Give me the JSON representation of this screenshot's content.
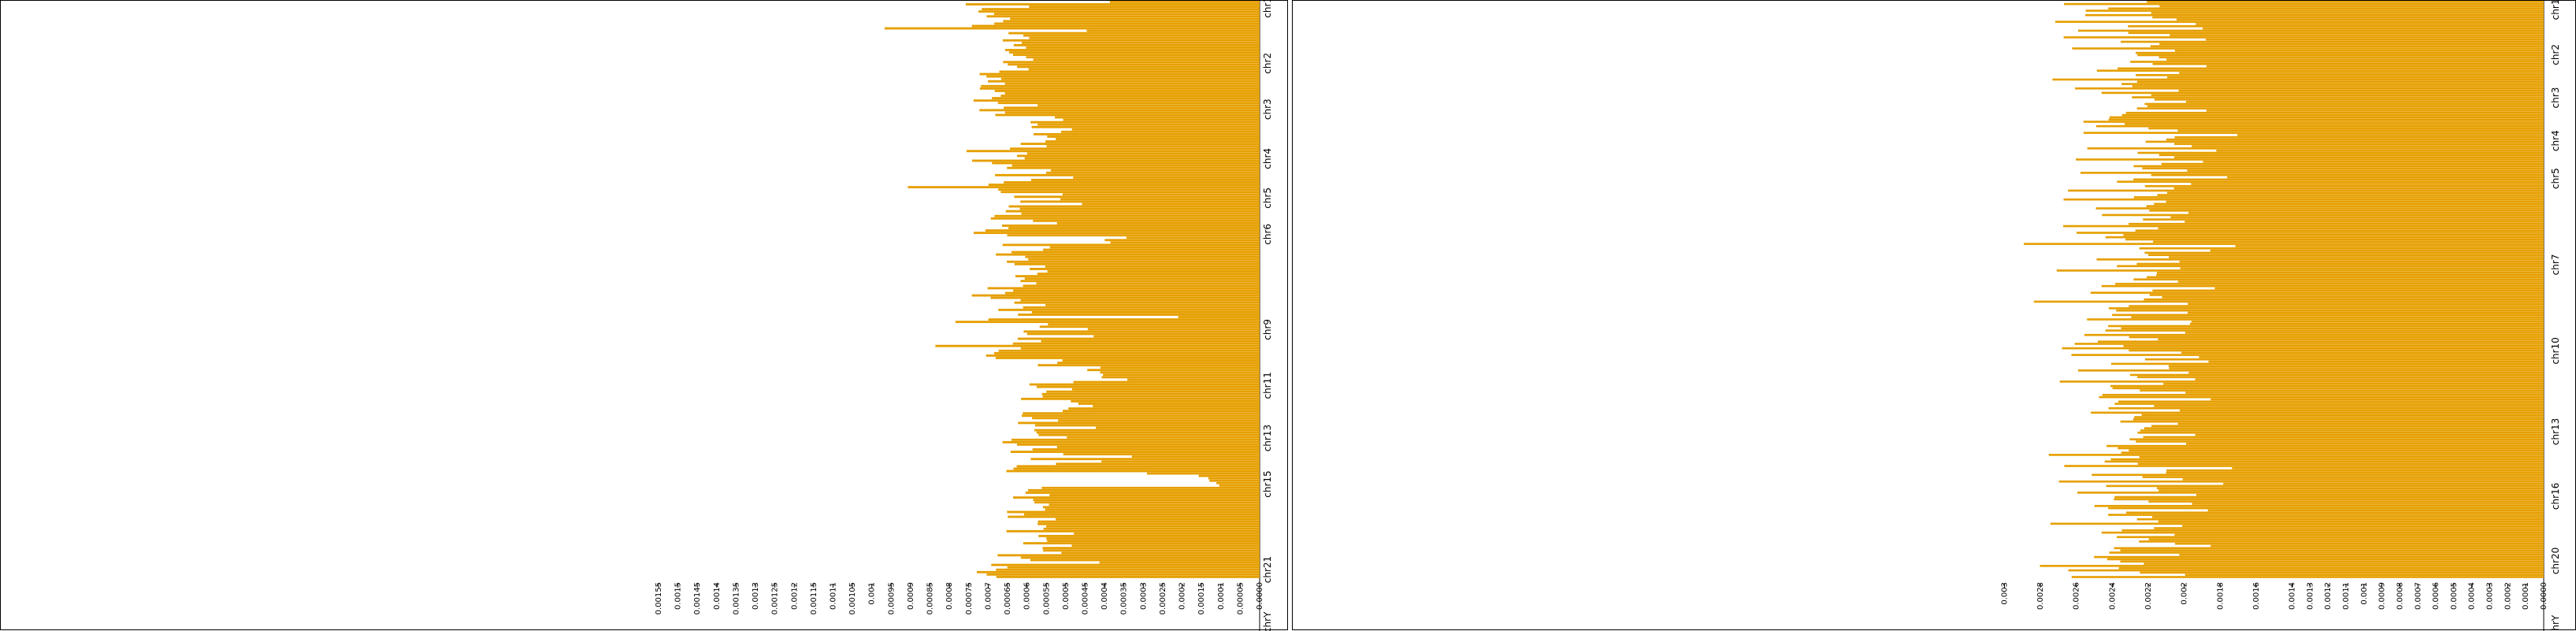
{
  "chart_data": [
    {
      "type": "bar",
      "orientation": "horizontal-reversed",
      "title": "",
      "bar_color": "#E69F00",
      "xlim": [
        0.00155,
        0.0
      ],
      "tick_labels": [
        "0.00155",
        "0.0015",
        "0.00145",
        "0.0014",
        "0.00135",
        "0.0013",
        "0.00125",
        "0.0012",
        "0.00115",
        "0.0011",
        "0.00105",
        "0.001",
        "0.00095",
        "0.0009",
        "0.00085",
        "0.0008",
        "0.00075",
        "0.0007",
        "0.00065",
        "0.0006",
        "0.00055",
        "0.0005",
        "0.00045",
        "0.0004",
        "0.00035",
        "0.0003",
        "0.00025",
        "0.0002",
        "0.00015",
        "0.0001",
        "0.00005",
        "0.0000"
      ],
      "tick_values": [
        0.00155,
        0.0015,
        0.00145,
        0.0014,
        0.00135,
        0.0013,
        0.00125,
        0.0012,
        0.00115,
        0.0011,
        0.00105,
        0.001,
        0.00095,
        0.0009,
        0.00085,
        0.0008,
        0.00075,
        0.0007,
        0.00065,
        0.0006,
        0.00055,
        0.0005,
        0.00045,
        0.0004,
        0.00035,
        0.0003,
        0.00025,
        0.0002,
        0.00015,
        0.0001,
        5e-05,
        0.0
      ],
      "chromosomes": [
        "chr1",
        "chr2",
        "chr3",
        "chr4",
        "chr5",
        "chr6",
        "chr9",
        "chr11",
        "chr13",
        "chr15",
        "chr21",
        "chrY"
      ],
      "chrom_row_index": [
        2,
        19,
        33,
        48,
        60,
        71,
        100,
        117,
        133,
        147,
        173,
        189
      ],
      "values": [
        0.00042,
        0.00071,
        0.00064,
        0.00071,
        0.00074,
        0.00069,
        0.00069,
        0.00068,
        0.00068,
        0.00068,
        0.00069,
        0.00092,
        0.00047,
        0.0006,
        0.00058,
        0.0006,
        0.00062,
        0.00062,
        0.00062,
        0.00062,
        0.00063,
        0.00064,
        0.00062,
        0.00061,
        0.00062,
        0.00068,
        0.00065,
        0.00068,
        0.00063,
        0.00068,
        0.00067,
        0.00068,
        0.00069,
        0.00071,
        0.00069,
        0.00071,
        0.00067,
        0.00064,
        0.00066,
        0.00064,
        0.00068,
        0.00069,
        0.00068,
        0.0006,
        0.00064,
        0.00069,
        0.00068,
        0.00068,
        0.00056,
        0.00054,
        0.00061,
        0.00061,
        0.00056,
        0.00048,
        0.00052,
        0.00055,
        0.00055,
        0.00055,
        0.00057,
        0.00065,
        0.00058,
        0.00069,
        0.00072,
        0.00065,
        0.00067,
        0.00065,
        0.00073,
        0.00072,
        0.00065,
        0.00067,
        0.00055,
        0.00055,
        0.00072,
        0.00052,
        0.00062,
        0.00065,
        0.00074,
        0.00088,
        0.00071,
        0.00072,
        0.00049,
        0.00064,
        0.00055,
        0.00064,
        0.00049,
        0.00066,
        0.00062,
        0.00067,
        0.00062,
        0.00064,
        0.00066,
        0.00062,
        0.00052,
        0.00064,
        0.00062,
        0.00068,
        0.00069,
        0.00069,
        0.00037,
        0.0004,
        0.0004,
        0.00062,
        0.00058,
        0.00059,
        0.00064,
        0.00064,
        0.00062,
        0.00059,
        0.00063,
        0.00059,
        0.00058,
        0.00058,
        0.00059,
        0.00062,
        0.00063,
        0.00061,
        0.00062,
        0.00054,
        0.00062,
        0.00065,
        0.00066,
        0.00063,
        0.00069,
        0.00074,
        0.00067,
        0.00061,
        0.00057,
        0.00064,
        0.00063,
        0.00061,
        0.00063,
        0.0002,
        0.00067,
        0.00085,
        0.00054,
        0.00054,
        0.00047,
        0.00058,
        0.00057,
        0.00045,
        0.00063,
        0.00054,
        0.00061,
        0.00079,
        0.00066,
        0.00065,
        0.00065,
        0.00066,
        0.00067,
        0.00051,
        0.00049,
        0.00062,
        0.00044,
        0.00043,
        0.00041,
        0.00038,
        0.00038,
        0.00034,
        0.0005,
        0.00061,
        0.00054,
        0.00048,
        0.00059,
        0.00056,
        0.00059,
        0.00062,
        0.00047,
        0.00045,
        0.00043,
        0.00048,
        0.00055,
        0.00059,
        0.00058,
        0.00056,
        0.00052,
        0.00061,
        0.00061,
        0.00043,
        0.00054,
        0.00059,
        0.00053,
        0.0005,
        0.00062,
        0.00063,
        0.00068,
        0.00056,
        0.00055,
        0.00062,
        0.00051,
        0.00035,
        0.00058,
        0.00043,
        0.00052,
        0.00067,
        0.00059,
        0.00064,
        0.0003,
        0.00015,
        0.00014,
        0.00013,
        0.00011,
        0.00011,
        0.00056,
        0.00061,
        0.00057,
        0.00053,
        0.00066,
        0.00055,
        0.00054,
        0.00055,
        0.00058,
        0.00058,
        0.00062,
        0.00058,
        0.00064,
        0.00055,
        0.00053,
        0.00061,
        0.00052,
        0.00057,
        0.00064,
        0.00048,
        0.00059,
        0.00053,
        0.00055,
        0.00061,
        0.00052,
        0.00056,
        0.00053,
        0.00052,
        0.00064,
        0.00061,
        0.00057
      ],
      "xlabel": "",
      "ylabel": ""
    },
    {
      "type": "bar",
      "orientation": "horizontal-reversed",
      "title": "",
      "bar_color": "#E69F00",
      "xlim": [
        0.0033,
        0.0
      ],
      "tick_labels": [
        "0.003",
        "0.0028",
        "0.0026",
        "0.0024",
        "0.0022",
        "0.002",
        "0.0018",
        "0.0016",
        "0.0014",
        "0.0013",
        "0.0012",
        "0.0011",
        "0.001",
        "0.0009",
        "0.0008",
        "0.0007",
        "0.0006",
        "0.0005",
        "0.0004",
        "0.0003",
        "0.0002",
        "0.0001",
        "0.0000"
      ],
      "tick_values": [
        0.003,
        0.0028,
        0.0026,
        0.0024,
        0.0022,
        0.002,
        0.0018,
        0.0016,
        0.0014,
        0.0013,
        0.0012,
        0.0011,
        0.001,
        0.0009,
        0.0008,
        0.0007,
        0.0006,
        0.0005,
        0.0004,
        0.0003,
        0.0002,
        0.0001,
        0.0
      ],
      "chromosomes": [
        "chr1",
        "chr2",
        "chr3",
        "chr4",
        "chr5",
        "chr7",
        "chr10",
        "chr13",
        "chr16",
        "chr20",
        "chrY"
      ],
      "chrom_row_index": [
        8,
        50,
        90,
        130,
        165,
        245,
        325,
        400,
        460,
        520,
        580
      ],
      "values": [
        0.0024,
        0.0025,
        0.0023,
        0.0024,
        0.0026,
        0.0022,
        0.0025,
        0.0023,
        0.0021,
        0.0027,
        0.0018,
        0.0022,
        0.002,
        0.0024,
        0.0022,
        0.0021,
        0.0025,
        0.0019,
        0.0023,
        0.0022,
        0.0021,
        0.0026,
        0.002,
        0.0023,
        0.0024,
        0.0022,
        0.0021,
        0.0025,
        0.0023,
        0.0019,
        0.0022,
        0.0024,
        0.0021,
        0.0023,
        0.0022,
        0.0027,
        0.0021,
        0.0022,
        0.0023,
        0.0025,
        0.002,
        0.0023,
        0.0022,
        0.0024,
        0.0021,
        0.0019,
        0.0023,
        0.0022,
        0.0024,
        0.002
      ],
      "xlabel": "",
      "ylabel": ""
    }
  ]
}
